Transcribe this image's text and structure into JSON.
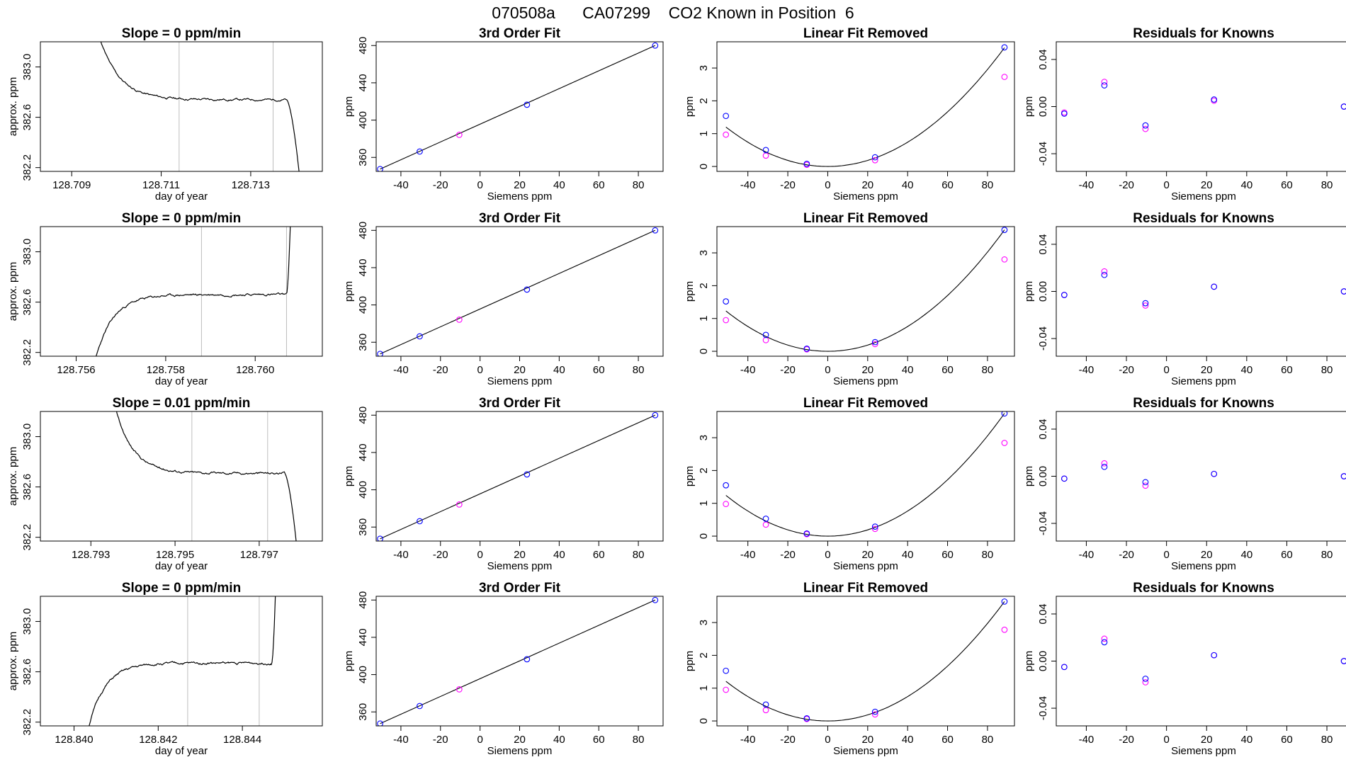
{
  "figure": {
    "title": "070508a      CA07299    CO2 Known in Position  6",
    "colors": {
      "line": "#000000",
      "vline": "#bebebe",
      "fit_point": "#0000ff",
      "raw_point": "#ff00ff"
    }
  },
  "chart_data": [
    {
      "type": "line",
      "row": 0,
      "col": 0,
      "title": "Slope =  0  ppm/min",
      "xlabel": "day of year",
      "ylabel": "approx. ppm",
      "xlim": [
        128.7083,
        128.7146
      ],
      "ylim": [
        382.17,
        383.2
      ],
      "xticks": [
        128.709,
        128.711,
        128.713
      ],
      "xticklabels": [
        "128.709",
        "128.711",
        "128.713"
      ],
      "yticks": [
        382.2,
        382.6,
        383.0
      ],
      "yticklabels": [
        "382.2",
        "382.6",
        "383.0"
      ],
      "vlines": [
        128.7114,
        128.7135
      ],
      "trace": {
        "shape": "decay",
        "x_start": 128.709,
        "x_end": 128.7141,
        "x_break": 128.7138,
        "start": 384.8,
        "level": 382.74,
        "end": 382.1,
        "seed": 11
      }
    },
    {
      "type": "scatter",
      "row": 0,
      "col": 1,
      "title": "3rd Order Fit",
      "xlabel": "Siemens ppm",
      "ylabel": "ppm",
      "xlim": [
        -52.5,
        92.5
      ],
      "ylim": [
        345,
        484
      ],
      "xticks": [
        -40,
        -20,
        0,
        20,
        40,
        60,
        80
      ],
      "xticklabels": [
        "-40",
        "-20",
        "0",
        "20",
        "40",
        "60",
        "80"
      ],
      "yticks": [
        360,
        400,
        440,
        480
      ],
      "yticklabels": [
        "360",
        "400",
        "440",
        "480"
      ],
      "fit_line": [
        [
          -50.5,
          347.5
        ],
        [
          88.5,
          480
        ]
      ],
      "points_fit": [
        [
          -50.5,
          347.5
        ],
        [
          -30.5,
          366.3
        ],
        [
          23.7,
          416.5
        ],
        [
          88.5,
          480
        ]
      ],
      "points_raw": [
        [
          -10.5,
          384.2
        ]
      ]
    },
    {
      "type": "scatter",
      "row": 0,
      "col": 2,
      "title": "Linear Fit Removed",
      "xlabel": "Siemens ppm",
      "ylabel": "ppm",
      "xlim": [
        -55.5,
        93.5
      ],
      "ylim": [
        -0.15,
        3.8
      ],
      "xticks": [
        -40,
        -20,
        0,
        20,
        40,
        60,
        80
      ],
      "xticklabels": [
        "-40",
        "-20",
        "0",
        "20",
        "40",
        "60",
        "80"
      ],
      "yticks": [
        0,
        1,
        2,
        3
      ],
      "yticklabels": [
        "0",
        "1",
        "2",
        "3"
      ],
      "curve": {
        "xmin": -51,
        "xmax": 88.5,
        "a": 0.0004621
      },
      "points_fit": [
        [
          -51,
          1.54
        ],
        [
          -31,
          0.5
        ],
        [
          -10.5,
          0.08
        ],
        [
          23.7,
          0.28
        ],
        [
          88.5,
          3.63
        ]
      ],
      "points_raw": [
        [
          -51,
          0.97
        ],
        [
          -31,
          0.33
        ],
        [
          -10.5,
          0.05
        ],
        [
          23.7,
          0.19
        ],
        [
          88.5,
          2.73
        ]
      ]
    },
    {
      "type": "scatter",
      "row": 0,
      "col": 3,
      "title": "Residuals for Knowns",
      "xlabel": "Siemens ppm",
      "ylabel": "ppm",
      "xlim": [
        -55,
        92
      ],
      "ylim": [
        -0.055,
        0.055
      ],
      "xticks": [
        -40,
        -20,
        0,
        20,
        40,
        60,
        80
      ],
      "xticklabels": [
        "-40",
        "-20",
        "0",
        "20",
        "40",
        "60",
        "80"
      ],
      "yticks": [
        -0.04,
        0.0,
        0.04
      ],
      "yticklabels": [
        "-0.04",
        "0.00",
        "0.04"
      ],
      "points_fit": [
        [
          -51,
          -0.006
        ],
        [
          -31,
          0.018
        ],
        [
          -10.5,
          -0.016
        ],
        [
          23.7,
          0.006
        ],
        [
          88.5,
          0.0
        ]
      ],
      "points_raw": [
        [
          -51,
          -0.005
        ],
        [
          -31,
          0.021
        ],
        [
          -10.5,
          -0.019
        ],
        [
          23.7,
          0.005
        ],
        [
          88.5,
          0.0
        ]
      ]
    },
    {
      "type": "line",
      "row": 1,
      "col": 0,
      "title": "Slope =  0  ppm/min",
      "xlabel": "day of year",
      "ylabel": "approx. ppm",
      "xlim": [
        128.7552,
        128.7615
      ],
      "ylim": [
        382.17,
        383.2
      ],
      "xticks": [
        128.756,
        128.758,
        128.76
      ],
      "xticklabels": [
        "128.756",
        "128.758",
        "128.760"
      ],
      "yticks": [
        382.2,
        382.6,
        383.0
      ],
      "yticklabels": [
        "382.2",
        "382.6",
        "383.0"
      ],
      "vlines": [
        128.7588,
        128.7607
      ],
      "trace": {
        "shape": "rise",
        "x_start": 128.7564,
        "x_end": 128.7609,
        "x_break": 128.7607,
        "start": 382.1,
        "level": 382.66,
        "end": 384.8,
        "seed": 23
      }
    },
    {
      "type": "scatter",
      "row": 1,
      "col": 1,
      "title": "3rd Order Fit",
      "xlabel": "Siemens ppm",
      "ylabel": "ppm",
      "xlim": [
        -52.5,
        92.5
      ],
      "ylim": [
        345,
        484
      ],
      "xticks": [
        -40,
        -20,
        0,
        20,
        40,
        60,
        80
      ],
      "xticklabels": [
        "-40",
        "-20",
        "0",
        "20",
        "40",
        "60",
        "80"
      ],
      "yticks": [
        360,
        400,
        440,
        480
      ],
      "yticklabels": [
        "360",
        "400",
        "440",
        "480"
      ],
      "fit_line": [
        [
          -50.5,
          347.5
        ],
        [
          88.5,
          480
        ]
      ],
      "points_fit": [
        [
          -50.5,
          347.5
        ],
        [
          -30.5,
          366.3
        ],
        [
          23.7,
          416.5
        ],
        [
          88.5,
          480
        ]
      ],
      "points_raw": [
        [
          -10.5,
          384.2
        ]
      ]
    },
    {
      "type": "scatter",
      "row": 1,
      "col": 2,
      "title": "Linear Fit Removed",
      "xlabel": "Siemens ppm",
      "ylabel": "ppm",
      "xlim": [
        -55.5,
        93.5
      ],
      "ylim": [
        -0.15,
        3.8
      ],
      "xticks": [
        -40,
        -20,
        0,
        20,
        40,
        60,
        80
      ],
      "xticklabels": [
        "-40",
        "-20",
        "0",
        "20",
        "40",
        "60",
        "80"
      ],
      "yticks": [
        0,
        1,
        2,
        3
      ],
      "yticklabels": [
        "0",
        "1",
        "2",
        "3"
      ],
      "curve": {
        "xmin": -51,
        "xmax": 88.5,
        "a": 0.0004725
      },
      "points_fit": [
        [
          -51,
          1.52
        ],
        [
          -31,
          0.5
        ],
        [
          -10.5,
          0.08
        ],
        [
          23.7,
          0.28
        ],
        [
          88.5,
          3.7
        ]
      ],
      "points_raw": [
        [
          -51,
          0.95
        ],
        [
          -31,
          0.34
        ],
        [
          -10.5,
          0.06
        ],
        [
          23.7,
          0.22
        ],
        [
          88.5,
          2.8
        ]
      ]
    },
    {
      "type": "scatter",
      "row": 1,
      "col": 3,
      "title": "Residuals for Knowns",
      "xlabel": "Siemens ppm",
      "ylabel": "ppm",
      "xlim": [
        -55,
        92
      ],
      "ylim": [
        -0.055,
        0.055
      ],
      "xticks": [
        -40,
        -20,
        0,
        20,
        40,
        60,
        80
      ],
      "xticklabels": [
        "-40",
        "-20",
        "0",
        "20",
        "40",
        "60",
        "80"
      ],
      "yticks": [
        -0.04,
        0.0,
        0.04
      ],
      "yticklabels": [
        "-0.04",
        "0.00",
        "0.04"
      ],
      "points_fit": [
        [
          -51,
          -0.003
        ],
        [
          -31,
          0.014
        ],
        [
          -10.5,
          -0.01
        ],
        [
          23.7,
          0.004
        ],
        [
          88.5,
          0.0
        ]
      ],
      "points_raw": [
        [
          -51,
          -0.003
        ],
        [
          -31,
          0.017
        ],
        [
          -10.5,
          -0.012
        ],
        [
          23.7,
          0.004
        ],
        [
          88.5,
          0.0
        ]
      ]
    },
    {
      "type": "line",
      "row": 2,
      "col": 0,
      "title": "Slope =  0.01  ppm/min",
      "xlabel": "day of year",
      "ylabel": "approx. ppm",
      "xlim": [
        128.7918,
        128.7985
      ],
      "ylim": [
        382.17,
        383.2
      ],
      "xticks": [
        128.793,
        128.795,
        128.797
      ],
      "xticklabels": [
        "128.793",
        "128.795",
        "128.797"
      ],
      "yticks": [
        382.2,
        382.6,
        383.0
      ],
      "yticklabels": [
        "382.2",
        "382.6",
        "383.0"
      ],
      "vlines": [
        128.7954,
        128.7972
      ],
      "trace": {
        "shape": "decay",
        "x_start": 128.793,
        "x_end": 128.7979,
        "x_break": 128.7976,
        "start": 384.8,
        "level": 382.71,
        "end": 382.1,
        "seed": 37
      }
    },
    {
      "type": "scatter",
      "row": 2,
      "col": 1,
      "title": "3rd Order Fit",
      "xlabel": "Siemens ppm",
      "ylabel": "ppm",
      "xlim": [
        -52.5,
        92.5
      ],
      "ylim": [
        345,
        484
      ],
      "xticks": [
        -40,
        -20,
        0,
        20,
        40,
        60,
        80
      ],
      "xticklabels": [
        "-40",
        "-20",
        "0",
        "20",
        "40",
        "60",
        "80"
      ],
      "yticks": [
        360,
        400,
        440,
        480
      ],
      "yticklabels": [
        "360",
        "400",
        "440",
        "480"
      ],
      "fit_line": [
        [
          -50.5,
          347.5
        ],
        [
          88.5,
          480
        ]
      ],
      "points_fit": [
        [
          -50.5,
          347.5
        ],
        [
          -30.5,
          366.3
        ],
        [
          23.7,
          416.5
        ],
        [
          88.5,
          480
        ]
      ],
      "points_raw": [
        [
          -10.5,
          384.2
        ]
      ]
    },
    {
      "type": "scatter",
      "row": 2,
      "col": 2,
      "title": "Linear Fit Removed",
      "xlabel": "Siemens ppm",
      "ylabel": "ppm",
      "xlim": [
        -55.5,
        93.5
      ],
      "ylim": [
        -0.15,
        3.8
      ],
      "xticks": [
        -40,
        -20,
        0,
        20,
        40,
        60,
        80
      ],
      "xticklabels": [
        "-40",
        "-20",
        "0",
        "20",
        "40",
        "60",
        "80"
      ],
      "yticks": [
        0,
        1,
        2,
        3
      ],
      "yticklabels": [
        "0",
        "1",
        "2",
        "3"
      ],
      "curve": {
        "xmin": -51,
        "xmax": 88.5,
        "a": 0.0004776
      },
      "points_fit": [
        [
          -51,
          1.55
        ],
        [
          -31,
          0.53
        ],
        [
          -10.5,
          0.08
        ],
        [
          23.7,
          0.29
        ],
        [
          88.5,
          3.74
        ]
      ],
      "points_raw": [
        [
          -51,
          0.98
        ],
        [
          -31,
          0.35
        ],
        [
          -10.5,
          0.06
        ],
        [
          23.7,
          0.22
        ],
        [
          88.5,
          2.84
        ]
      ]
    },
    {
      "type": "scatter",
      "row": 2,
      "col": 3,
      "title": "Residuals for Knowns",
      "xlabel": "Siemens ppm",
      "ylabel": "ppm",
      "xlim": [
        -55,
        92
      ],
      "ylim": [
        -0.055,
        0.055
      ],
      "xticks": [
        -40,
        -20,
        0,
        20,
        40,
        60,
        80
      ],
      "xticklabels": [
        "-40",
        "-20",
        "0",
        "20",
        "40",
        "60",
        "80"
      ],
      "yticks": [
        -0.04,
        0.0,
        0.04
      ],
      "yticklabels": [
        "-0.04",
        "0.00",
        "0.04"
      ],
      "points_fit": [
        [
          -51,
          -0.002
        ],
        [
          -31,
          0.008
        ],
        [
          -10.5,
          -0.005
        ],
        [
          23.7,
          0.002
        ],
        [
          88.5,
          0.0
        ]
      ],
      "points_raw": [
        [
          -51,
          -0.002
        ],
        [
          -31,
          0.011
        ],
        [
          -10.5,
          -0.008
        ],
        [
          23.7,
          0.002
        ],
        [
          88.5,
          0.0
        ]
      ]
    },
    {
      "type": "line",
      "row": 3,
      "col": 0,
      "title": "Slope =  0  ppm/min",
      "xlabel": "day of year",
      "ylabel": "approx. ppm",
      "xlim": [
        128.8392,
        128.8459
      ],
      "ylim": [
        382.17,
        383.2
      ],
      "xticks": [
        128.84,
        128.842,
        128.844
      ],
      "xticklabels": [
        "128.840",
        "128.842",
        "128.844"
      ],
      "yticks": [
        382.2,
        382.6,
        383.0
      ],
      "yticklabels": [
        "382.2",
        "382.6",
        "383.0"
      ],
      "vlines": [
        128.8427,
        128.8444
      ],
      "trace": {
        "shape": "rise",
        "x_start": 128.8403,
        "x_end": 128.8449,
        "x_break": 128.8447,
        "start": 382.1,
        "level": 382.67,
        "end": 384.8,
        "seed": 51
      }
    },
    {
      "type": "scatter",
      "row": 3,
      "col": 1,
      "title": "3rd Order Fit",
      "xlabel": "Siemens ppm",
      "ylabel": "ppm",
      "xlim": [
        -52.5,
        92.5
      ],
      "ylim": [
        345,
        484
      ],
      "xticks": [
        -40,
        -20,
        0,
        20,
        40,
        60,
        80
      ],
      "xticklabels": [
        "-40",
        "-20",
        "0",
        "20",
        "40",
        "60",
        "80"
      ],
      "yticks": [
        360,
        400,
        440,
        480
      ],
      "yticklabels": [
        "360",
        "400",
        "440",
        "480"
      ],
      "fit_line": [
        [
          -50.5,
          347.5
        ],
        [
          88.5,
          480
        ]
      ],
      "points_fit": [
        [
          -50.5,
          347.5
        ],
        [
          -30.5,
          366.3
        ],
        [
          23.7,
          416.5
        ],
        [
          88.5,
          480
        ]
      ],
      "points_raw": [
        [
          -10.5,
          384.2
        ]
      ]
    },
    {
      "type": "scatter",
      "row": 3,
      "col": 2,
      "title": "Linear Fit Removed",
      "xlabel": "Siemens ppm",
      "ylabel": "ppm",
      "xlim": [
        -55.5,
        93.5
      ],
      "ylim": [
        -0.15,
        3.8
      ],
      "xticks": [
        -40,
        -20,
        0,
        20,
        40,
        60,
        80
      ],
      "xticklabels": [
        "-40",
        "-20",
        "0",
        "20",
        "40",
        "60",
        "80"
      ],
      "yticks": [
        0,
        1,
        2,
        3
      ],
      "yticklabels": [
        "0",
        "1",
        "2",
        "3"
      ],
      "curve": {
        "xmin": -51,
        "xmax": 88.5,
        "a": 0.0004647
      },
      "points_fit": [
        [
          -51,
          1.53
        ],
        [
          -31,
          0.5
        ],
        [
          -10.5,
          0.08
        ],
        [
          23.7,
          0.28
        ],
        [
          88.5,
          3.64
        ]
      ],
      "points_raw": [
        [
          -51,
          0.95
        ],
        [
          -31,
          0.33
        ],
        [
          -10.5,
          0.06
        ],
        [
          23.7,
          0.2
        ],
        [
          88.5,
          2.78
        ]
      ]
    },
    {
      "type": "scatter",
      "row": 3,
      "col": 3,
      "title": "Residuals for Knowns",
      "xlabel": "Siemens ppm",
      "ylabel": "ppm",
      "xlim": [
        -55,
        92
      ],
      "ylim": [
        -0.055,
        0.055
      ],
      "xticks": [
        -40,
        -20,
        0,
        20,
        40,
        60,
        80
      ],
      "xticklabels": [
        "-40",
        "-20",
        "0",
        "20",
        "40",
        "60",
        "80"
      ],
      "yticks": [
        -0.04,
        0.0,
        0.04
      ],
      "yticklabels": [
        "-0.04",
        "0.00",
        "0.04"
      ],
      "points_fit": [
        [
          -51,
          -0.005
        ],
        [
          -31,
          0.016
        ],
        [
          -10.5,
          -0.015
        ],
        [
          23.7,
          0.005
        ],
        [
          88.5,
          0.0
        ]
      ],
      "points_raw": [
        [
          -51,
          -0.005
        ],
        [
          -31,
          0.019
        ],
        [
          -10.5,
          -0.018
        ],
        [
          23.7,
          0.005
        ],
        [
          88.5,
          0.0
        ]
      ]
    }
  ]
}
